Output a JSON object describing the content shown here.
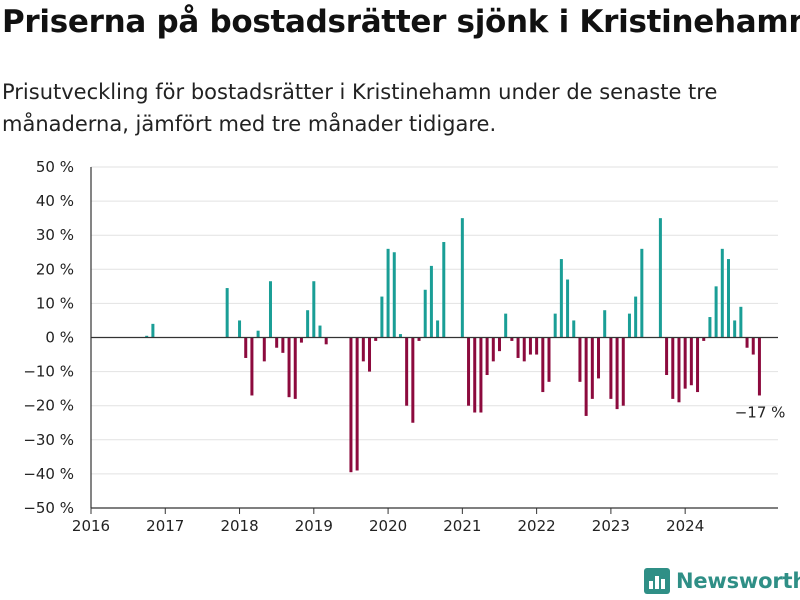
{
  "title": "Priserna på bostadsrätter sjönk i Kristinehamn",
  "subtitle": "Prisutveckling för bostadsrätter i Kristinehamn under de senaste tre månaderna, jämfört med tre månader tidigare.",
  "brand": "Newsworthy",
  "colors": {
    "positive": "#1a9e96",
    "negative": "#8c0a3d",
    "grid": "#e2e2e2",
    "axis": "#333333",
    "brand": "#2f8f86"
  },
  "chart_data": {
    "type": "bar",
    "title": "Priserna på bostadsrätter sjönk i Kristinehamn",
    "subtitle": "Prisutveckling för bostadsrätter i Kristinehamn under de senaste tre månaderna, jämfört med tre månader tidigare.",
    "xlabel": "",
    "ylabel": "",
    "grid": true,
    "ylim": [
      -50,
      50
    ],
    "xlim": [
      "2016-01",
      "2025-04"
    ],
    "y_ticks": [
      {
        "value": 50,
        "label": "50 %"
      },
      {
        "value": 40,
        "label": "40 %"
      },
      {
        "value": 30,
        "label": "30 %"
      },
      {
        "value": 20,
        "label": "20 %"
      },
      {
        "value": 10,
        "label": "10 %"
      },
      {
        "value": 0,
        "label": "0 %"
      },
      {
        "value": -10,
        "label": "−10 %"
      },
      {
        "value": -20,
        "label": "−20 %"
      },
      {
        "value": -30,
        "label": "−30 %"
      },
      {
        "value": -40,
        "label": "−40 %"
      },
      {
        "value": -50,
        "label": "−50 %"
      }
    ],
    "x_ticks": [
      {
        "value": "2016-01",
        "label": "2016"
      },
      {
        "value": "2017-01",
        "label": "2017"
      },
      {
        "value": "2018-01",
        "label": "2018"
      },
      {
        "value": "2019-01",
        "label": "2019"
      },
      {
        "value": "2020-01",
        "label": "2020"
      },
      {
        "value": "2021-01",
        "label": "2021"
      },
      {
        "value": "2022-01",
        "label": "2022"
      },
      {
        "value": "2023-01",
        "label": "2023"
      },
      {
        "value": "2024-01",
        "label": "2024"
      }
    ],
    "annotation": {
      "date": "2024-12",
      "label": "−17 %"
    },
    "points": [
      {
        "date": "2016-10",
        "value": 0.5
      },
      {
        "date": "2016-11",
        "value": 4
      },
      {
        "date": "2017-11",
        "value": 14.5
      },
      {
        "date": "2018-01",
        "value": 5
      },
      {
        "date": "2018-02",
        "value": -6
      },
      {
        "date": "2018-03",
        "value": -17
      },
      {
        "date": "2018-04",
        "value": 2
      },
      {
        "date": "2018-05",
        "value": -7
      },
      {
        "date": "2018-06",
        "value": 16.5
      },
      {
        "date": "2018-07",
        "value": -3
      },
      {
        "date": "2018-08",
        "value": -4.5
      },
      {
        "date": "2018-09",
        "value": -17.5
      },
      {
        "date": "2018-10",
        "value": -18
      },
      {
        "date": "2018-11",
        "value": -1.5
      },
      {
        "date": "2018-12",
        "value": 8
      },
      {
        "date": "2019-01",
        "value": 16.5
      },
      {
        "date": "2019-02",
        "value": 3.5
      },
      {
        "date": "2019-03",
        "value": -2
      },
      {
        "date": "2019-07",
        "value": -39.5
      },
      {
        "date": "2019-08",
        "value": -39
      },
      {
        "date": "2019-09",
        "value": -7
      },
      {
        "date": "2019-10",
        "value": -10
      },
      {
        "date": "2019-11",
        "value": -1
      },
      {
        "date": "2019-12",
        "value": 12
      },
      {
        "date": "2020-01",
        "value": 26
      },
      {
        "date": "2020-02",
        "value": 25
      },
      {
        "date": "2020-03",
        "value": 1
      },
      {
        "date": "2020-04",
        "value": -20
      },
      {
        "date": "2020-05",
        "value": -25
      },
      {
        "date": "2020-06",
        "value": -1
      },
      {
        "date": "2020-07",
        "value": 14
      },
      {
        "date": "2020-08",
        "value": 21
      },
      {
        "date": "2020-09",
        "value": 5
      },
      {
        "date": "2020-10",
        "value": 28
      },
      {
        "date": "2021-01",
        "value": 35
      },
      {
        "date": "2021-02",
        "value": -20
      },
      {
        "date": "2021-03",
        "value": -22
      },
      {
        "date": "2021-04",
        "value": -22
      },
      {
        "date": "2021-05",
        "value": -11
      },
      {
        "date": "2021-06",
        "value": -7
      },
      {
        "date": "2021-07",
        "value": -4
      },
      {
        "date": "2021-08",
        "value": 7
      },
      {
        "date": "2021-09",
        "value": -1
      },
      {
        "date": "2021-10",
        "value": -6
      },
      {
        "date": "2021-11",
        "value": -7
      },
      {
        "date": "2021-12",
        "value": -5
      },
      {
        "date": "2022-01",
        "value": -5
      },
      {
        "date": "2022-02",
        "value": -16
      },
      {
        "date": "2022-03",
        "value": -13
      },
      {
        "date": "2022-04",
        "value": 7
      },
      {
        "date": "2022-05",
        "value": 23
      },
      {
        "date": "2022-06",
        "value": 17
      },
      {
        "date": "2022-07",
        "value": 5
      },
      {
        "date": "2022-08",
        "value": -13
      },
      {
        "date": "2022-09",
        "value": -23
      },
      {
        "date": "2022-10",
        "value": -18
      },
      {
        "date": "2022-11",
        "value": -12
      },
      {
        "date": "2022-12",
        "value": 8
      },
      {
        "date": "2023-01",
        "value": -18
      },
      {
        "date": "2023-02",
        "value": -21
      },
      {
        "date": "2023-03",
        "value": -20
      },
      {
        "date": "2023-04",
        "value": 7
      },
      {
        "date": "2023-05",
        "value": 12
      },
      {
        "date": "2023-06",
        "value": 26
      },
      {
        "date": "2023-09",
        "value": 35
      },
      {
        "date": "2023-10",
        "value": -11
      },
      {
        "date": "2023-11",
        "value": -18
      },
      {
        "date": "2023-12",
        "value": -19
      },
      {
        "date": "2024-01",
        "value": -15
      },
      {
        "date": "2024-02",
        "value": -14
      },
      {
        "date": "2024-03",
        "value": -16
      },
      {
        "date": "2024-04",
        "value": -1
      },
      {
        "date": "2024-05",
        "value": 6
      },
      {
        "date": "2024-06",
        "value": 15
      },
      {
        "date": "2024-07",
        "value": 26
      },
      {
        "date": "2024-08",
        "value": 23
      },
      {
        "date": "2024-09",
        "value": 5
      },
      {
        "date": "2024-10",
        "value": 9
      },
      {
        "date": "2024-11",
        "value": -3
      },
      {
        "date": "2024-12",
        "value": -5
      },
      {
        "date": "2025-01",
        "value": -17
      }
    ]
  }
}
